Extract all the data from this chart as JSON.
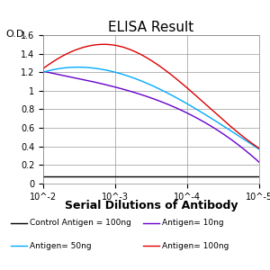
{
  "title": "ELISA Result",
  "ylabel": "O.D.",
  "xlabel": "Serial Dilutions of Antibody",
  "x_ticks_labels": [
    "10^-2",
    "10^-3",
    "10^-4",
    "10^-5"
  ],
  "x_ticks_positions": [
    0,
    1,
    2,
    3
  ],
  "ylim": [
    0,
    1.6
  ],
  "yticks": [
    0,
    0.2,
    0.4,
    0.6,
    0.8,
    1.0,
    1.2,
    1.4,
    1.6
  ],
  "ytick_labels": [
    "0",
    "0.2",
    "0.4",
    "0.6",
    "0.8",
    "1",
    "1.2",
    "1.4",
    "1.6"
  ],
  "lines": [
    {
      "label": "Control Antigen = 100ng",
      "color": "#000000",
      "x": [
        0,
        1,
        2,
        3
      ],
      "y": [
        0.08,
        0.08,
        0.08,
        0.08
      ]
    },
    {
      "label": "Antigen= 10ng",
      "color": "#6600CC",
      "x": [
        0,
        1,
        2,
        3
      ],
      "y": [
        1.21,
        1.04,
        0.76,
        0.23
      ]
    },
    {
      "label": "Antigen= 50ng",
      "color": "#00AAFF",
      "x": [
        0,
        1,
        2,
        3
      ],
      "y": [
        1.2,
        1.2,
        0.86,
        0.37
      ]
    },
    {
      "label": "Antigen= 100ng",
      "color": "#DD0000",
      "x": [
        0,
        0.45,
        1.0,
        2.0,
        3.0
      ],
      "y": [
        1.24,
        1.44,
        1.49,
        1.03,
        0.38
      ]
    }
  ],
  "background_color": "#ffffff",
  "grid_color": "#999999",
  "title_fontsize": 11,
  "tick_fontsize": 7,
  "xlabel_fontsize": 9,
  "legend_fontsize": 6.5
}
